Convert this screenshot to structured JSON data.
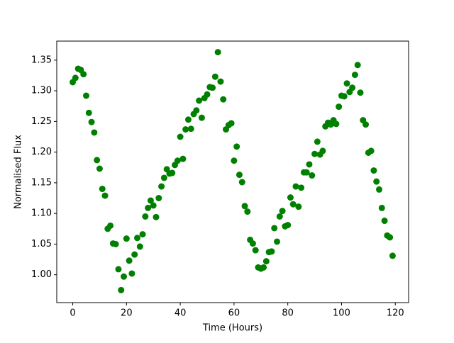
{
  "chart_data": {
    "type": "scatter",
    "color": "#008000",
    "x_label": "Time (Hours)",
    "y_label": "Normalised Flux",
    "x": [
      0,
      1,
      2,
      3,
      4,
      5,
      6,
      7,
      8,
      9,
      10,
      11,
      12,
      13,
      14,
      15,
      16,
      17,
      18,
      19,
      20,
      21,
      22,
      23,
      24,
      25,
      26,
      27,
      28,
      29,
      30,
      31,
      32,
      33,
      34,
      35,
      36,
      37,
      38,
      39,
      40,
      41,
      42,
      43,
      44,
      45,
      46,
      47,
      48,
      49,
      50,
      51,
      52,
      53,
      54,
      55,
      56,
      57,
      58,
      59,
      60,
      61,
      62,
      63,
      64,
      65,
      66,
      67,
      68,
      69,
      70,
      71,
      72,
      73,
      74,
      75,
      76,
      77,
      78,
      79,
      80,
      81,
      82,
      83,
      84,
      85,
      86,
      87,
      88,
      89,
      90,
      91,
      92,
      93,
      94,
      95,
      96,
      97,
      98,
      99,
      100,
      101,
      102,
      103,
      104,
      105,
      106,
      107,
      108,
      109,
      110,
      111,
      112,
      113,
      114,
      115,
      116,
      117,
      118,
      119
    ],
    "values": [
      1.314,
      1.321,
      1.336,
      1.334,
      1.327,
      1.292,
      1.264,
      1.249,
      1.232,
      1.187,
      1.173,
      1.14,
      1.129,
      1.075,
      1.08,
      1.051,
      1.05,
      1.009,
      0.975,
      0.997,
      1.059,
      1.023,
      1.002,
      1.033,
      1.06,
      1.046,
      1.066,
      1.095,
      1.109,
      1.121,
      1.113,
      1.094,
      1.125,
      1.144,
      1.158,
      1.172,
      1.165,
      1.166,
      1.179,
      1.186,
      1.225,
      1.189,
      1.237,
      1.253,
      1.238,
      1.262,
      1.268,
      1.284,
      1.256,
      1.288,
      1.294,
      1.306,
      1.305,
      1.323,
      1.363,
      1.315,
      1.286,
      1.237,
      1.244,
      1.247,
      1.186,
      1.209,
      1.163,
      1.151,
      1.112,
      1.103,
      1.057,
      1.051,
      1.04,
      1.012,
      1.01,
      1.012,
      1.022,
      1.037,
      1.038,
      1.076,
      1.054,
      1.095,
      1.104,
      1.079,
      1.081,
      1.126,
      1.115,
      1.144,
      1.111,
      1.142,
      1.167,
      1.167,
      1.18,
      1.162,
      1.197,
      1.217,
      1.196,
      1.202,
      1.242,
      1.248,
      1.245,
      1.252,
      1.246,
      1.274,
      1.292,
      1.291,
      1.312,
      1.298,
      1.305,
      1.326,
      1.342,
      1.297,
      1.252,
      1.245,
      1.199,
      1.202,
      1.17,
      1.152,
      1.139,
      1.109,
      1.088,
      1.064,
      1.061,
      1.031
    ],
    "xlim": [
      -5.95,
      124.95
    ],
    "ylim": [
      0.9546,
      1.381
    ],
    "xticks": [
      0,
      20,
      40,
      60,
      80,
      100,
      120
    ],
    "yticks": [
      {
        "value": 1.0,
        "label": "1.00"
      },
      {
        "value": 1.05,
        "label": "1.05"
      },
      {
        "value": 1.1,
        "label": "1.10"
      },
      {
        "value": 1.15,
        "label": "1.15"
      },
      {
        "value": 1.2,
        "label": "1.20"
      },
      {
        "value": 1.25,
        "label": "1.25"
      },
      {
        "value": 1.3,
        "label": "1.30"
      },
      {
        "value": 1.35,
        "label": "1.35"
      }
    ]
  }
}
